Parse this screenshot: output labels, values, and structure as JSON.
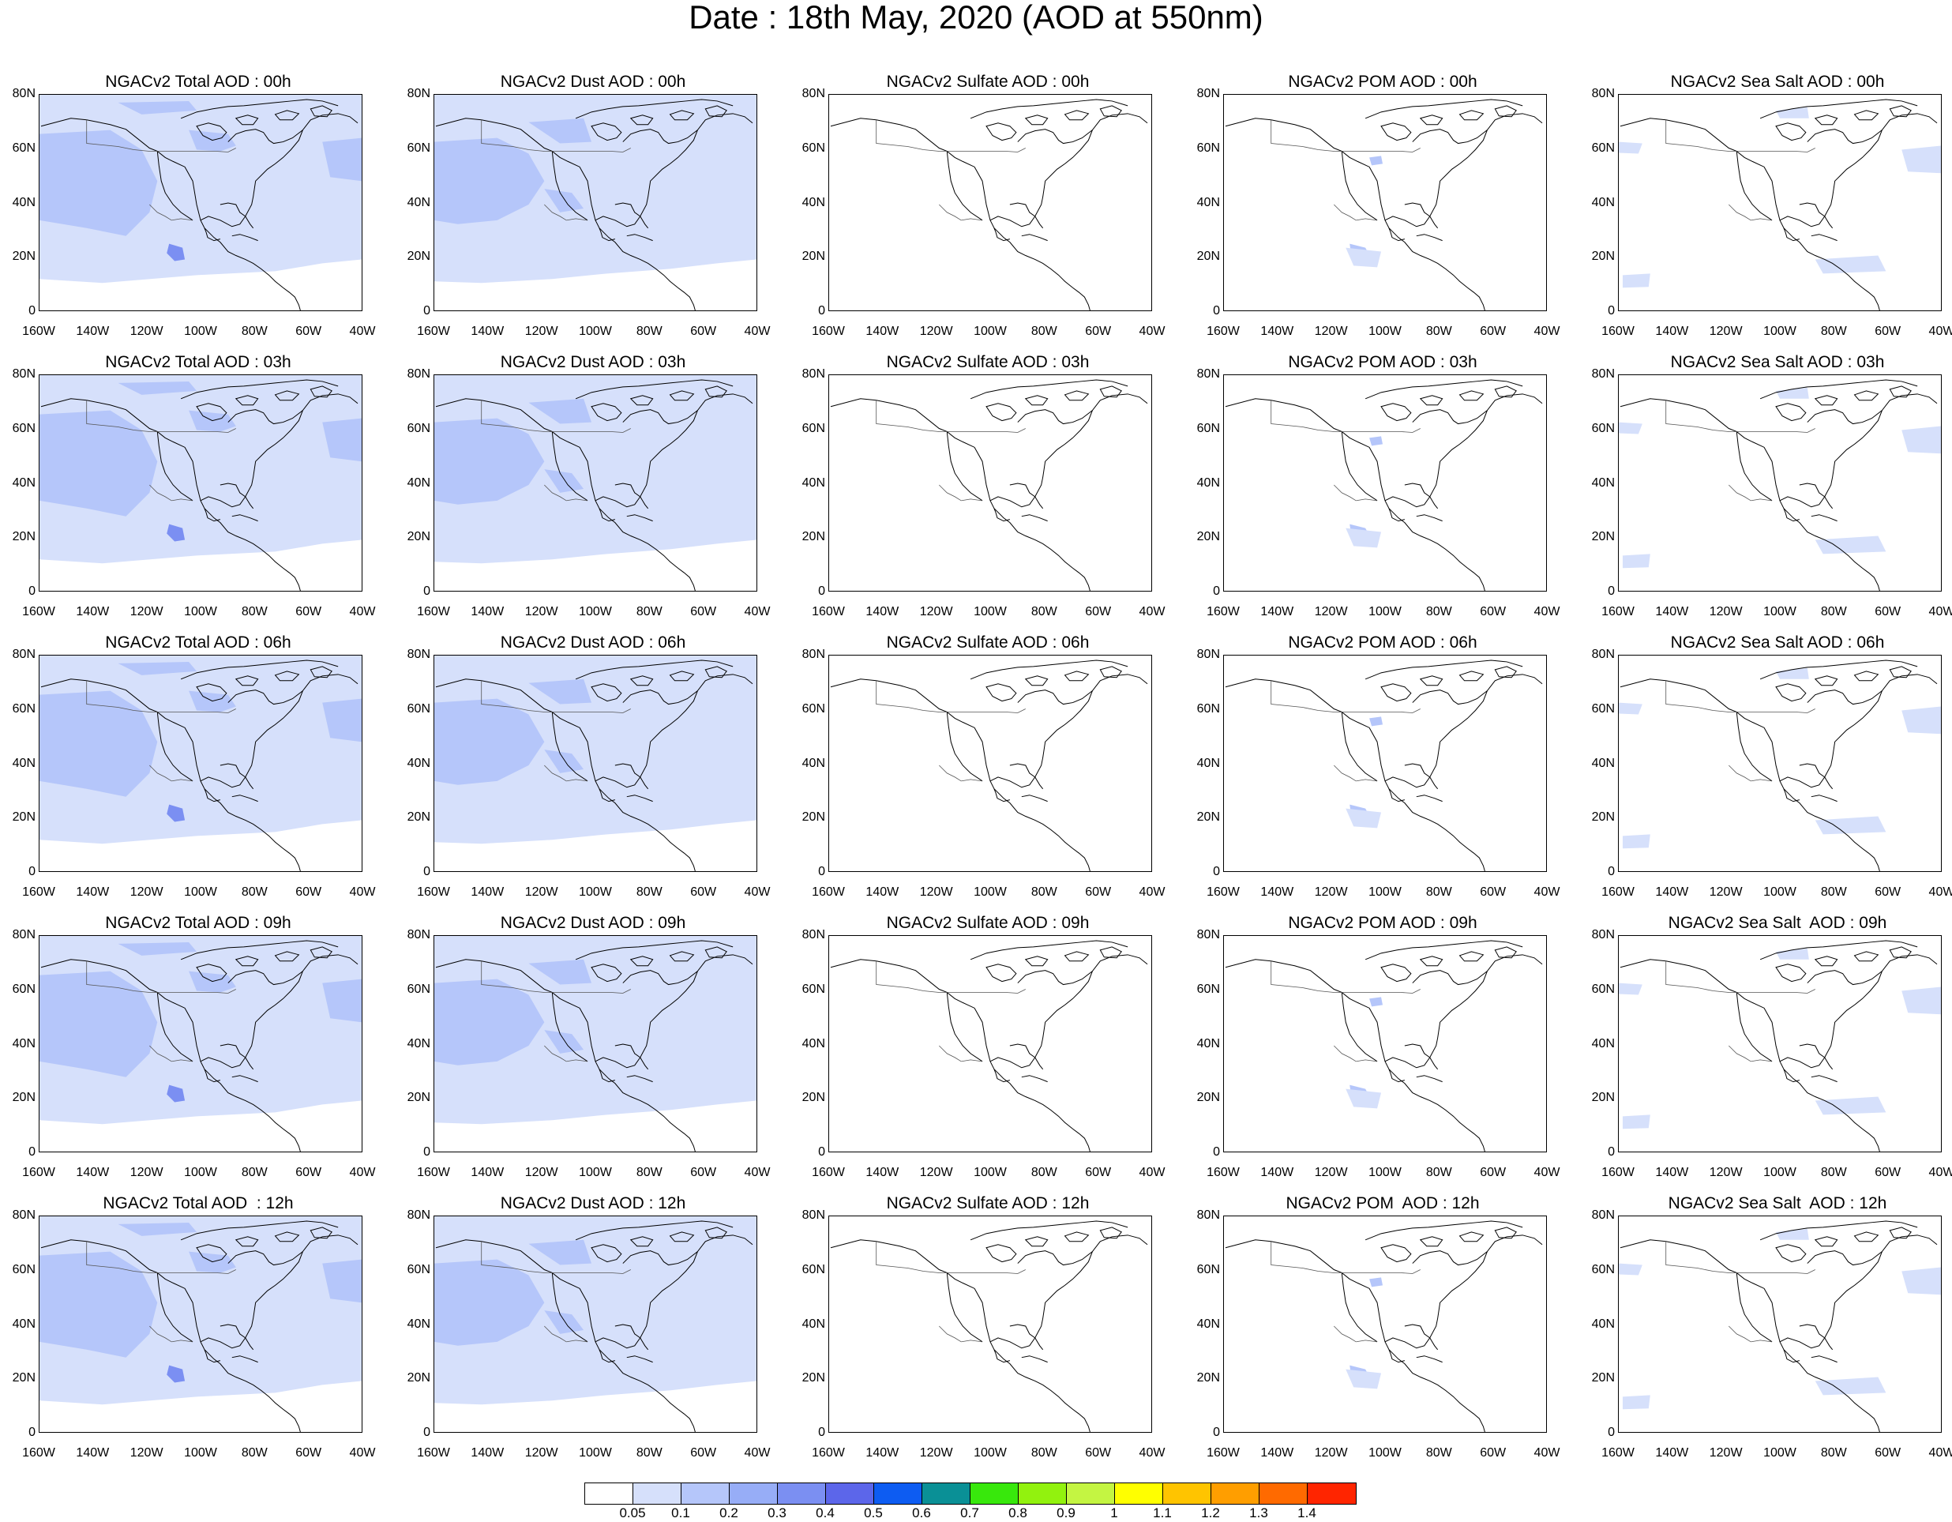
{
  "title": "Date : 18th May, 2020 (AOD at 550nm)",
  "panels": [
    [
      "NGACv2 Total AOD : 00h",
      "NGACv2 Dust AOD : 00h",
      "NGACv2 Sulfate AOD : 00h",
      "NGACv2 POM AOD : 00h",
      "NGACv2 Sea Salt AOD : 00h"
    ],
    [
      "NGACv2 Total AOD : 03h",
      "NGACv2 Dust AOD : 03h",
      "NGACv2 Sulfate AOD : 03h",
      "NGACv2 POM AOD : 03h",
      "NGACv2 Sea Salt AOD : 03h"
    ],
    [
      "NGACv2 Total AOD : 06h",
      "NGACv2 Dust AOD : 06h",
      "NGACv2 Sulfate AOD : 06h",
      "NGACv2 POM AOD : 06h",
      "NGACv2 Sea Salt AOD : 06h"
    ],
    [
      "NGACv2 Total AOD : 09h",
      "NGACv2 Dust AOD : 09h",
      "NGACv2 Sulfate AOD : 09h",
      "NGACv2 POM AOD : 09h",
      "NGACv2 Sea Salt  AOD : 09h"
    ],
    [
      "NGACv2 Total AOD  : 12h",
      "NGACv2 Dust AOD : 12h",
      "NGACv2 Sulfate AOD : 12h",
      "NGACv2 POM  AOD : 12h",
      "NGACv2 Sea Salt  AOD : 12h"
    ]
  ],
  "axes": {
    "lat_ticks": [
      "80N",
      "60N",
      "40N",
      "20N",
      "0"
    ],
    "lon_ticks": [
      "160W",
      "140W",
      "120W",
      "100W",
      "80W",
      "60W",
      "40W"
    ]
  },
  "colorbar": {
    "colors": [
      "#ffffff",
      "#d6e0fb",
      "#b5c6fa",
      "#97adf7",
      "#7b8ff2",
      "#5c66ea",
      "#0d5cf2",
      "#0a9096",
      "#38e80c",
      "#92f20e",
      "#c4f542",
      "#ffff00",
      "#ffc400",
      "#ff9e00",
      "#ff6a00",
      "#ff2500"
    ],
    "labels": [
      "0.05",
      "0.1",
      "0.2",
      "0.3",
      "0.4",
      "0.5",
      "0.6",
      "0.7",
      "0.8",
      "0.9",
      "1",
      "1.1",
      "1.2",
      "1.3",
      "1.4"
    ]
  }
}
